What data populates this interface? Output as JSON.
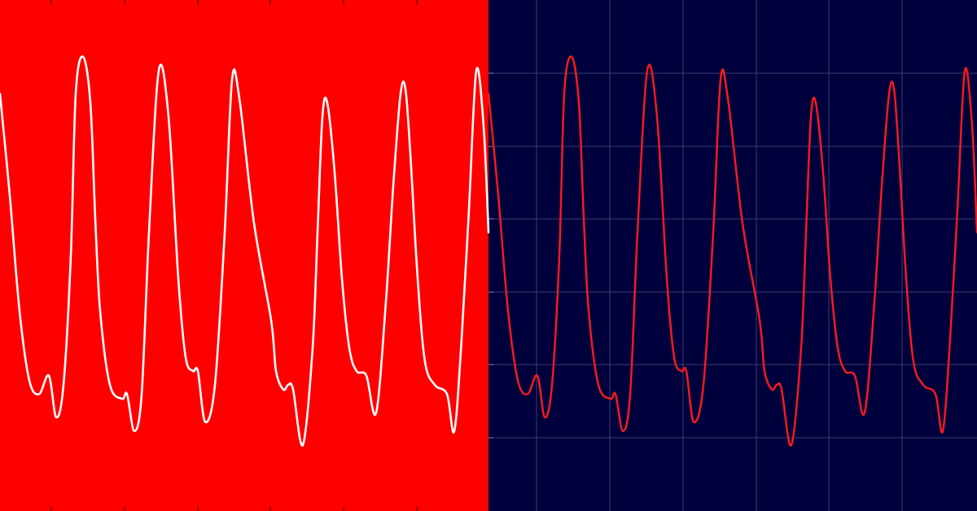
{
  "colors": {
    "left_background": "#ff0000",
    "right_background": "#00003c",
    "left_trace": "#ffffff",
    "right_trace": "#ff1a1a",
    "grid": "#3a3f6e",
    "tick": "#600000"
  },
  "chart_data": [
    {
      "type": "line",
      "panel": "left",
      "title": "",
      "xlabel": "",
      "ylabel": "",
      "grid": false,
      "xlim": [
        0,
        1
      ],
      "ylim": [
        0,
        1
      ],
      "series": [
        {
          "x": [
            0.0,
            0.02,
            0.04,
            0.06,
            0.08,
            0.1,
            0.115,
            0.13,
            0.145,
            0.155,
            0.17,
            0.185,
            0.195,
            0.205,
            0.225,
            0.25,
            0.26,
            0.275,
            0.29,
            0.305,
            0.325,
            0.345,
            0.365,
            0.38,
            0.395,
            0.405,
            0.42,
            0.44,
            0.46,
            0.475,
            0.49,
            0.52,
            0.555,
            0.565,
            0.58,
            0.59,
            0.6,
            0.62,
            0.64,
            0.65,
            0.66,
            0.67,
            0.685,
            0.7,
            0.715,
            0.73,
            0.75,
            0.77,
            0.79,
            0.805,
            0.82,
            0.83,
            0.84,
            0.855,
            0.87,
            0.89,
            0.915,
            0.93,
            0.945,
            0.96,
            0.975,
            0.99,
            1.0
          ],
          "y": [
            0.85,
            0.63,
            0.38,
            0.23,
            0.2,
            0.24,
            0.15,
            0.22,
            0.5,
            0.85,
            0.93,
            0.83,
            0.58,
            0.38,
            0.22,
            0.19,
            0.2,
            0.12,
            0.2,
            0.55,
            0.9,
            0.8,
            0.45,
            0.28,
            0.25,
            0.25,
            0.14,
            0.22,
            0.55,
            0.88,
            0.84,
            0.57,
            0.36,
            0.25,
            0.21,
            0.22,
            0.21,
            0.09,
            0.3,
            0.55,
            0.8,
            0.83,
            0.68,
            0.45,
            0.3,
            0.25,
            0.24,
            0.16,
            0.4,
            0.65,
            0.85,
            0.86,
            0.72,
            0.45,
            0.27,
            0.22,
            0.2,
            0.12,
            0.32,
            0.6,
            0.9,
            0.78,
            0.55
          ]
        }
      ]
    },
    {
      "type": "line",
      "panel": "right",
      "title": "",
      "xlabel": "",
      "ylabel": "",
      "grid": true,
      "xlim": [
        0,
        1
      ],
      "ylim": [
        0,
        1
      ],
      "series": [
        {
          "x": [
            0.0,
            0.02,
            0.04,
            0.06,
            0.08,
            0.1,
            0.115,
            0.13,
            0.145,
            0.155,
            0.17,
            0.185,
            0.195,
            0.205,
            0.225,
            0.25,
            0.26,
            0.275,
            0.29,
            0.305,
            0.325,
            0.345,
            0.365,
            0.38,
            0.395,
            0.405,
            0.42,
            0.44,
            0.46,
            0.475,
            0.49,
            0.52,
            0.555,
            0.565,
            0.58,
            0.59,
            0.6,
            0.62,
            0.64,
            0.65,
            0.66,
            0.67,
            0.685,
            0.7,
            0.715,
            0.73,
            0.75,
            0.77,
            0.79,
            0.805,
            0.82,
            0.83,
            0.84,
            0.855,
            0.87,
            0.89,
            0.915,
            0.93,
            0.945,
            0.96,
            0.975,
            0.99,
            1.0
          ],
          "y": [
            0.85,
            0.63,
            0.38,
            0.23,
            0.2,
            0.24,
            0.15,
            0.22,
            0.5,
            0.85,
            0.93,
            0.83,
            0.58,
            0.38,
            0.22,
            0.19,
            0.2,
            0.12,
            0.2,
            0.55,
            0.9,
            0.8,
            0.45,
            0.28,
            0.25,
            0.25,
            0.14,
            0.22,
            0.55,
            0.88,
            0.84,
            0.57,
            0.36,
            0.25,
            0.21,
            0.22,
            0.21,
            0.09,
            0.3,
            0.55,
            0.8,
            0.83,
            0.68,
            0.45,
            0.3,
            0.25,
            0.24,
            0.16,
            0.4,
            0.65,
            0.85,
            0.86,
            0.72,
            0.45,
            0.27,
            0.22,
            0.2,
            0.12,
            0.32,
            0.6,
            0.9,
            0.78,
            0.55
          ]
        }
      ]
    }
  ]
}
